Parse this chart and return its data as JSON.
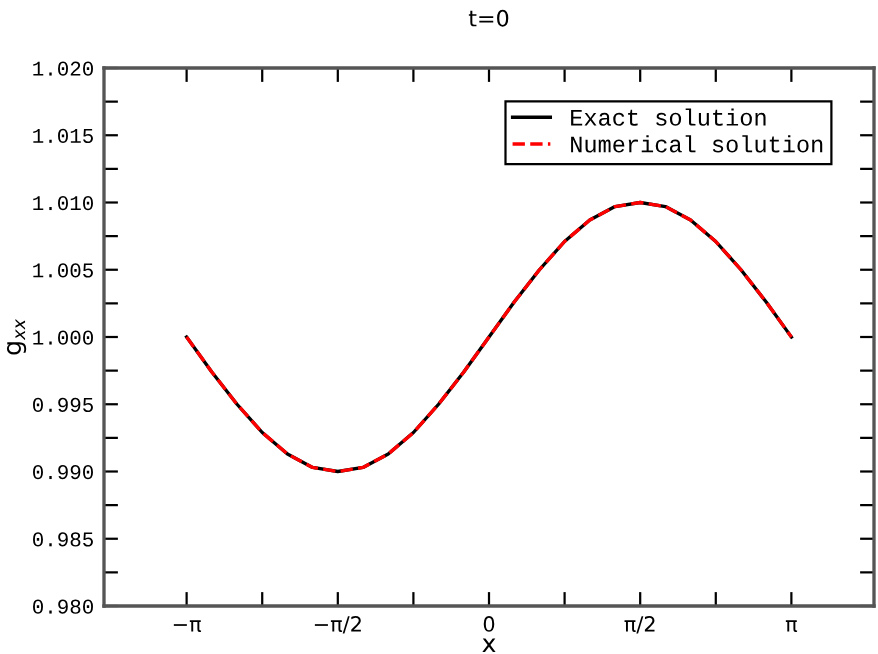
{
  "chart_data": {
    "type": "line",
    "title": "t=0",
    "xlabel": "x",
    "ylabel": "g$_{xx}$",
    "x": [
      -3.142,
      -2.88,
      -2.618,
      -2.356,
      -2.094,
      -1.833,
      -1.571,
      -1.309,
      -1.047,
      -0.785,
      -0.524,
      -0.262,
      0,
      0.262,
      0.524,
      0.785,
      1.047,
      1.309,
      1.571,
      1.833,
      2.094,
      2.356,
      2.618,
      2.88,
      3.142
    ],
    "series": [
      {
        "name": "Exact solution",
        "color": "#000000",
        "line_style": "solid",
        "values": [
          1.0,
          0.9974,
          0.995,
          0.9929,
          0.9913,
          0.9903,
          0.99,
          0.9903,
          0.9913,
          0.9929,
          0.995,
          0.9974,
          1.0,
          1.0026,
          1.005,
          1.0071,
          1.0087,
          1.0097,
          1.01,
          1.0097,
          1.0087,
          1.0071,
          1.005,
          1.0026,
          1.0
        ]
      },
      {
        "name": "Numerical solution",
        "color": "#ff0000",
        "line_style": "dashed",
        "values": [
          1.0,
          0.9974,
          0.995,
          0.9929,
          0.9913,
          0.9903,
          0.99,
          0.9903,
          0.9913,
          0.9929,
          0.995,
          0.9974,
          1.0,
          1.0026,
          1.005,
          1.0071,
          1.0087,
          1.0097,
          1.01,
          1.0097,
          1.0087,
          1.0071,
          1.005,
          1.0026,
          1.0
        ]
      }
    ],
    "xlim": [
      -4,
      4
    ],
    "xticks": [
      {
        "value": -3.1416,
        "label": "−π"
      },
      {
        "value": -2.3562,
        "label": null
      },
      {
        "value": -1.5708,
        "label": "−π/2"
      },
      {
        "value": -0.7854,
        "label": null
      },
      {
        "value": 0,
        "label": "0"
      },
      {
        "value": 0.7854,
        "label": null
      },
      {
        "value": 1.5708,
        "label": "π/2"
      },
      {
        "value": 2.3562,
        "label": null
      },
      {
        "value": 3.1416,
        "label": "π"
      }
    ],
    "ylim": [
      0.98,
      1.02
    ],
    "yticks": [
      {
        "value": 0.98,
        "label": "0.980"
      },
      {
        "value": 0.9825,
        "label": null
      },
      {
        "value": 0.985,
        "label": "0.985"
      },
      {
        "value": 0.9875,
        "label": null
      },
      {
        "value": 0.99,
        "label": "0.990"
      },
      {
        "value": 0.9925,
        "label": null
      },
      {
        "value": 0.995,
        "label": "0.995"
      },
      {
        "value": 0.9975,
        "label": null
      },
      {
        "value": 1.0,
        "label": "1.000"
      },
      {
        "value": 1.0025,
        "label": null
      },
      {
        "value": 1.005,
        "label": "1.005"
      },
      {
        "value": 1.0075,
        "label": null
      },
      {
        "value": 1.01,
        "label": "1.010"
      },
      {
        "value": 1.0125,
        "label": null
      },
      {
        "value": 1.015,
        "label": "1.015"
      },
      {
        "value": 1.0175,
        "label": null
      },
      {
        "value": 1.02,
        "label": "1.020"
      }
    ],
    "grid": false,
    "legend": "top right",
    "marker": "none"
  }
}
